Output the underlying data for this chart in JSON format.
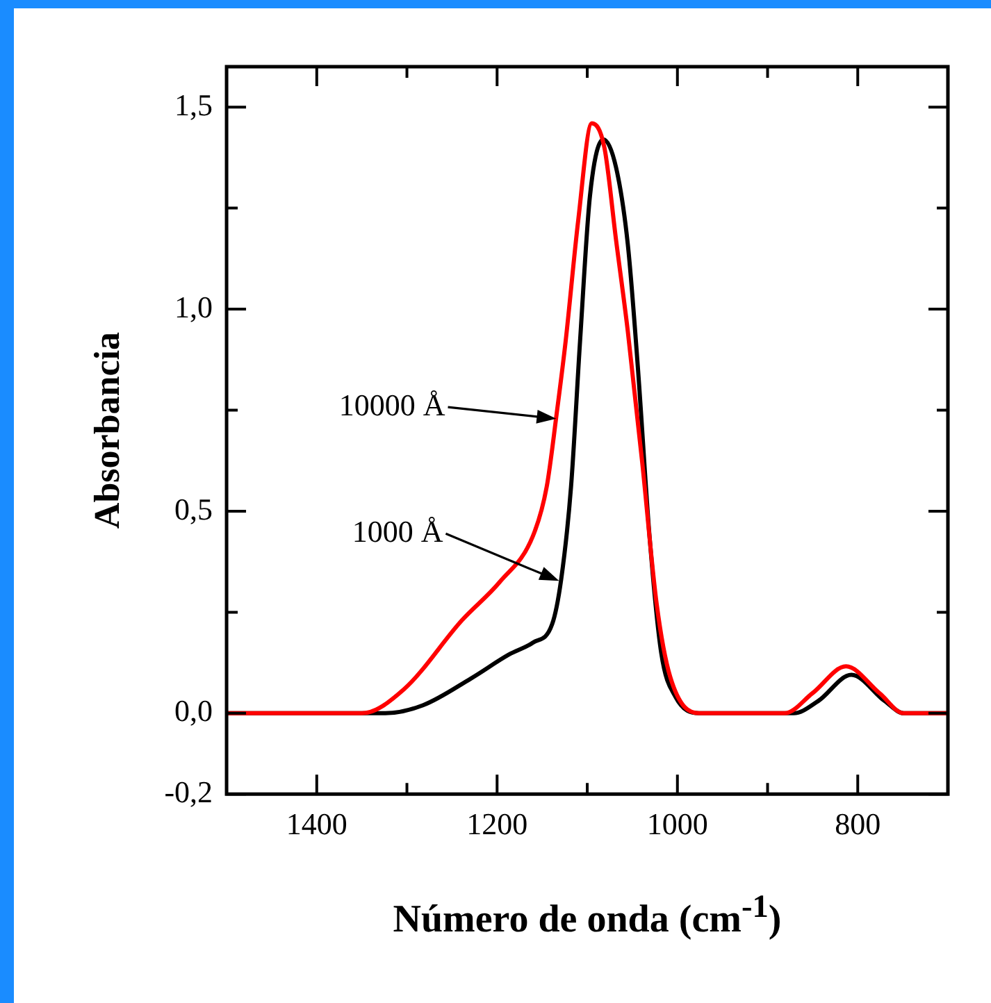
{
  "chart_data": {
    "type": "line",
    "xlabel": "Número de onda (cm$^{-1}$)",
    "ylabel": "Absorbancia",
    "xlim": [
      1500,
      700
    ],
    "ylim": [
      -0.2,
      1.6
    ],
    "xticks": [
      1400,
      {
        "value": 1300,
        "label": null
      },
      1200,
      {
        "value": 1100,
        "label": null
      },
      1000,
      {
        "value": 900,
        "label": null
      },
      800
    ],
    "yticks": [
      {
        "value": -0.2,
        "label": "-0,2"
      },
      {
        "value": 0,
        "label": "0,0"
      },
      {
        "value": 0.25,
        "label": null
      },
      {
        "value": 0.5,
        "label": "0,5"
      },
      {
        "value": 0.75,
        "label": null
      },
      {
        "value": 1,
        "label": "1,0"
      },
      {
        "value": 1.25,
        "label": null
      },
      {
        "value": 1.5,
        "label": "1,5"
      }
    ],
    "grid": false,
    "legend": false,
    "marker": "none",
    "line_style": "solid",
    "series": [
      {
        "color": "#ff0000",
        "x": [
          1500,
          1350,
          1303,
          1239,
          1197,
          1160,
          1145,
          1134,
          1124,
          1110,
          1095,
          1081,
          1068,
          1055,
          1039,
          1023,
          1008,
          976,
          881,
          850,
          813,
          776,
          749,
          700
        ],
        "values": [
          0,
          0,
          0.06,
          0.23,
          0.325,
          0.44,
          0.56,
          0.74,
          0.92,
          1.22,
          1.46,
          1.4,
          1.17,
          0.945,
          0.62,
          0.27,
          0.09,
          0,
          0,
          0.05,
          0.116,
          0.05,
          0,
          0
        ]
      },
      {
        "color": "#000000",
        "x": [
          1500,
          1324,
          1282,
          1229,
          1187,
          1160,
          1139,
          1129,
          1118,
          1108,
          1097,
          1082,
          1068,
          1055,
          1044,
          1031,
          1018,
          1002,
          976,
          871,
          844,
          807,
          770,
          749,
          700
        ],
        "values": [
          0,
          0,
          0.02,
          0.086,
          0.145,
          0.175,
          0.22,
          0.33,
          0.56,
          0.92,
          1.28,
          1.42,
          1.35,
          1.16,
          0.86,
          0.44,
          0.15,
          0.04,
          0,
          0,
          0.03,
          0.095,
          0.03,
          0,
          0
        ]
      }
    ],
    "annotations": [
      "10000 Å",
      "1000 Å"
    ]
  }
}
